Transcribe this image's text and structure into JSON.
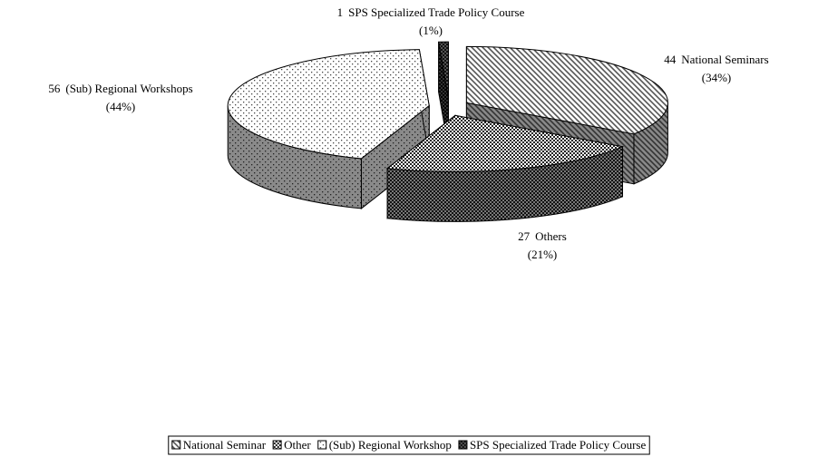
{
  "chart_data": {
    "type": "pie3d",
    "categories": [
      "National Seminar",
      "Other",
      "(Sub) Regional Workshop",
      "SPS Specialized Trade Policy Course"
    ],
    "values": [
      44,
      27,
      56,
      1
    ],
    "label_names": [
      "National Seminars",
      "Others",
      "(Sub) Regional Workshops",
      "SPS Specialized Trade Policy Course"
    ],
    "percents": [
      34,
      21,
      44,
      1
    ],
    "percent_labels": [
      "(34%)",
      "(21%)",
      "(44%)",
      "(1%)"
    ],
    "legend": "bottom"
  }
}
